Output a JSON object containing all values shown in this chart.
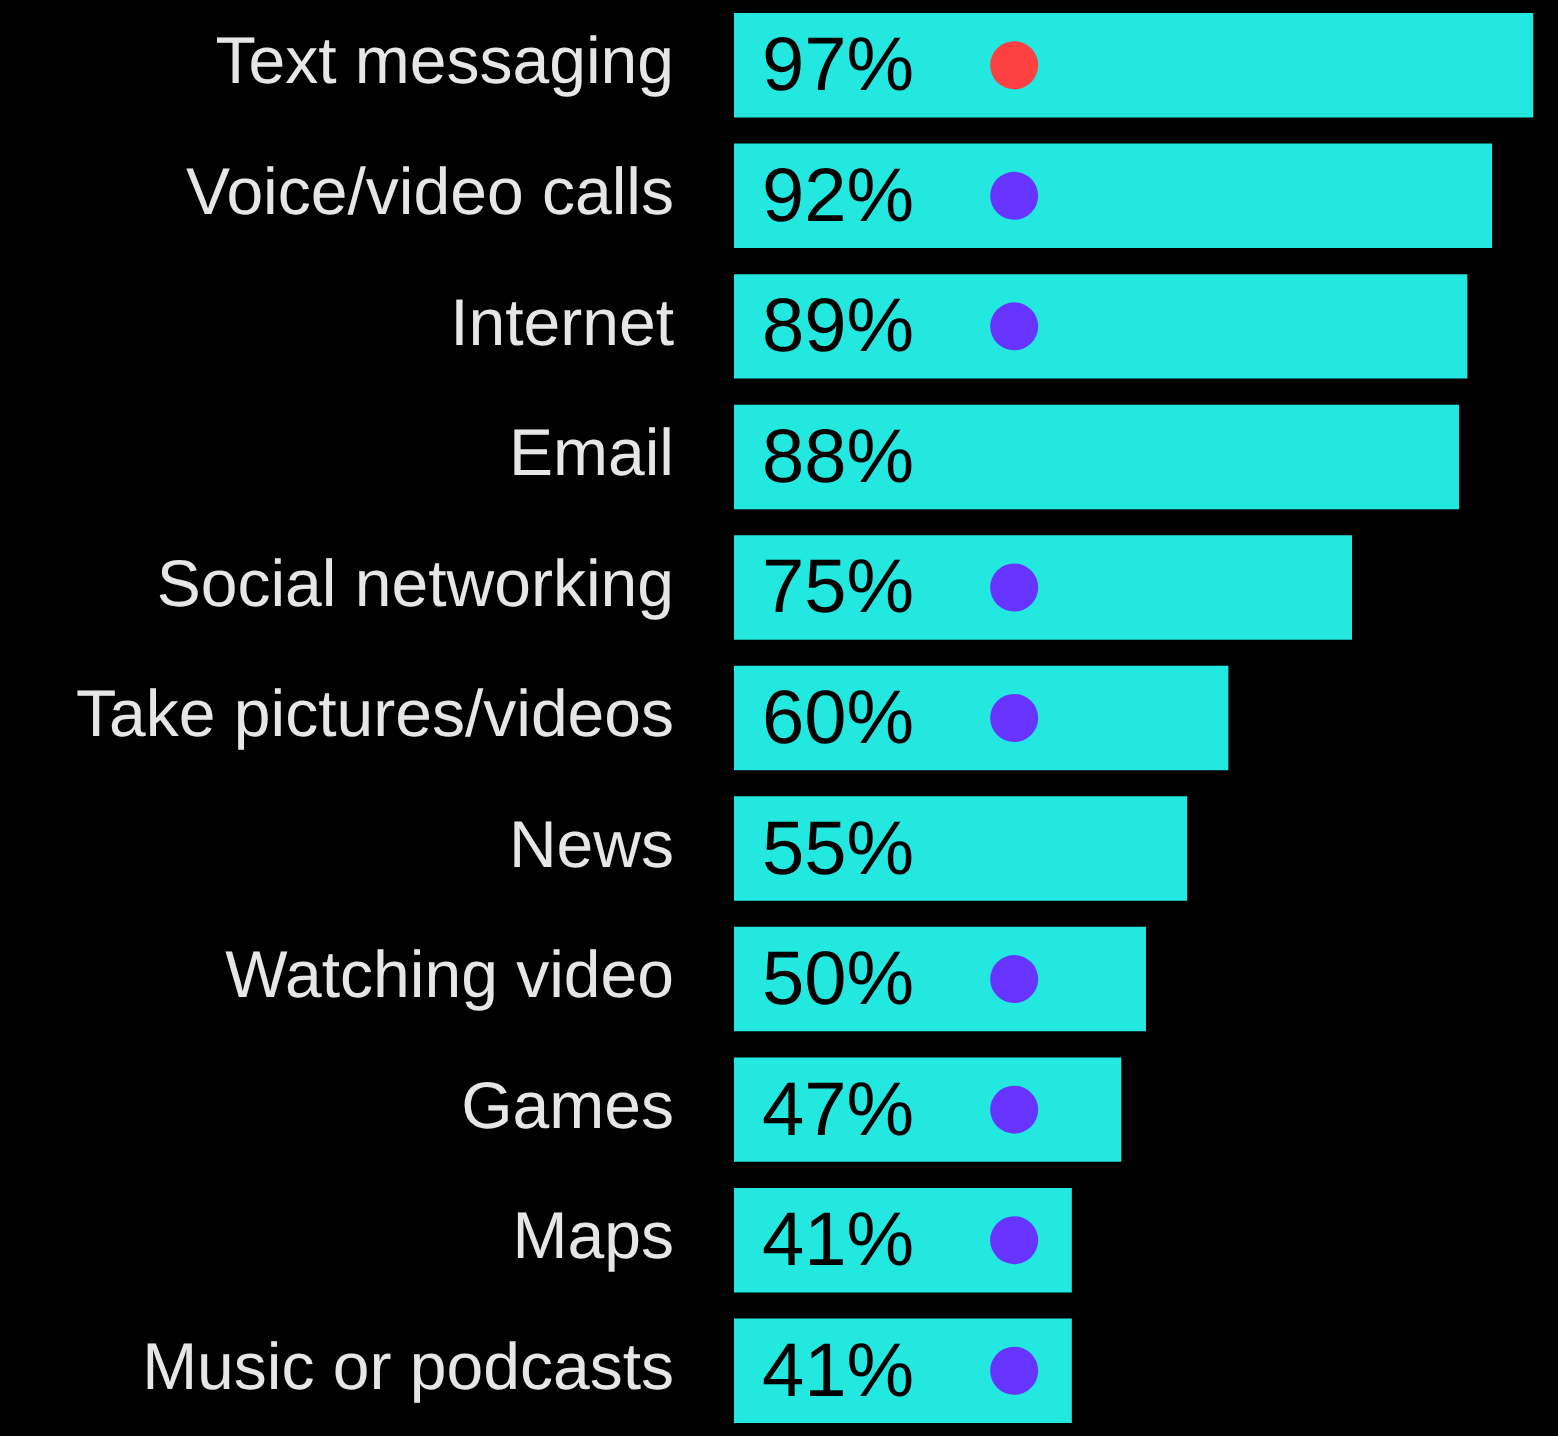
{
  "chart_data": {
    "type": "bar",
    "orientation": "horizontal",
    "categories": [
      "Text messaging",
      "Voice/video calls",
      "Internet",
      "Email",
      "Social networking",
      "Take pictures/videos",
      "News",
      "Watching video",
      "Games",
      "Maps",
      "Music or podcasts"
    ],
    "tick_labels": "y",
    "marker": "circle",
    "series": [
      {
        "color": "#22e8e0",
        "values": [
          97,
          92,
          89,
          88,
          75,
          60,
          55,
          50,
          47,
          41,
          41
        ],
        "value_labels": [
          "97%",
          "92%",
          "89%",
          "88%",
          "75%",
          "60%",
          "55%",
          "50%",
          "47%",
          "41%",
          "41%"
        ]
      },
      {
        "type": "scatter",
        "values": [
          34,
          34,
          34,
          null,
          34,
          34,
          null,
          34,
          34,
          34,
          34
        ],
        "colors": [
          "#ff4040",
          "#6633ff",
          "#6633ff",
          null,
          "#6633ff",
          "#6633ff",
          null,
          "#6633ff",
          "#6633ff",
          "#6633ff",
          "#6633ff"
        ]
      }
    ]
  }
}
